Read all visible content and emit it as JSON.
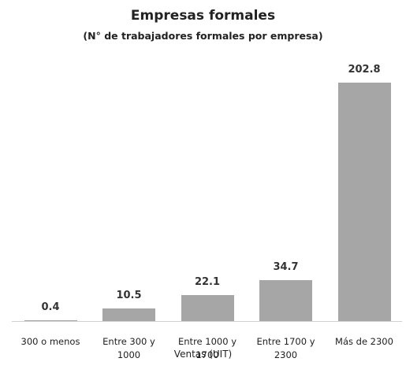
{
  "chart_data": {
    "type": "bar",
    "title": "Empresas formales",
    "subtitle": "(N° de trabajadores formales por empresa)",
    "x_label": "Ventas  (UIT)",
    "categories": [
      "300 o menos",
      "Entre 300 y 1000",
      "Entre 1000 y 1700",
      "Entre 1700 y 2300",
      "Más de 2300"
    ],
    "values": [
      0.4,
      10.5,
      22.1,
      34.7,
      202.8
    ],
    "color": "#a6a6a6"
  }
}
